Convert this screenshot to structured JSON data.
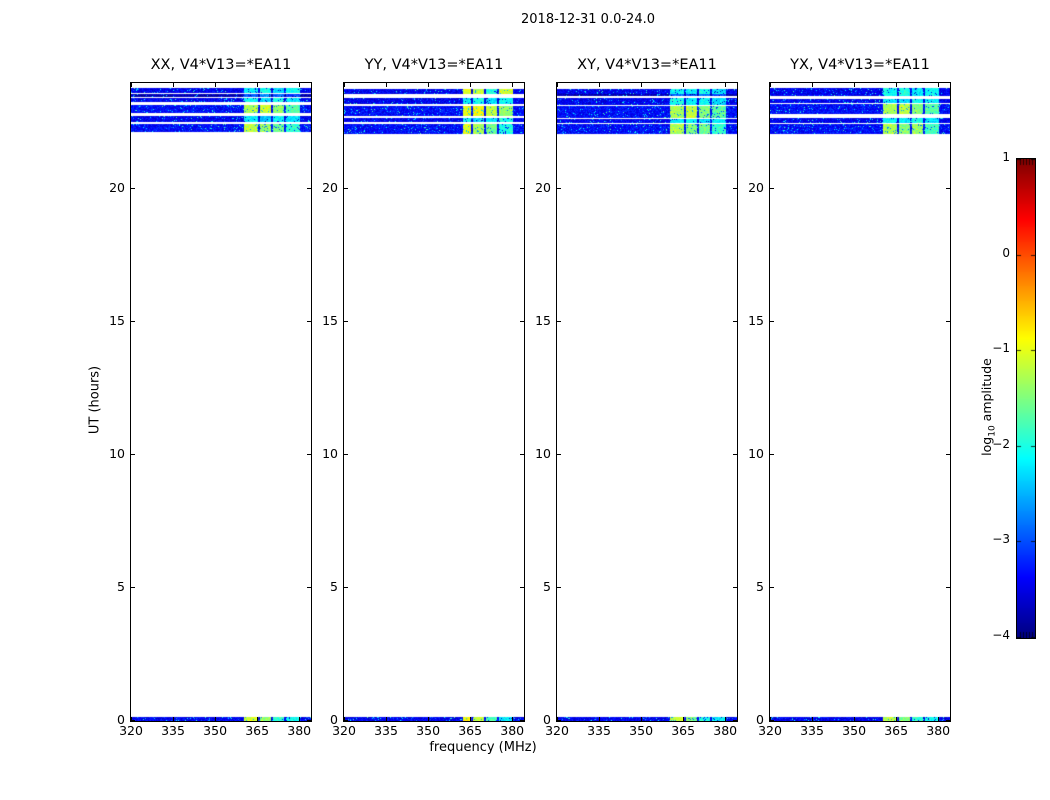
{
  "figure": {
    "suptitle": "2018-12-31 0.0-24.0"
  },
  "chart_data": {
    "type": "heatmap",
    "title": "2018-12-31 0.0-24.0",
    "xlabel": "frequency (MHz)",
    "ylabel": "UT (hours)",
    "x_range": [
      320,
      384.2
    ],
    "y_range": [
      0,
      24
    ],
    "x_ticks": [
      320,
      335,
      350,
      365,
      380
    ],
    "y_ticks": [
      0,
      5,
      10,
      15,
      20
    ],
    "grid": false,
    "colorbar": {
      "label_pre": "log",
      "label_sub": "10",
      "label_post": " amplitude",
      "ticks": [
        1,
        0,
        -1,
        -2,
        -3,
        -4
      ],
      "range": [
        -4,
        1
      ],
      "colormap": "jet"
    },
    "bright_segments_mhz": [
      [
        360.4,
        365.2
      ],
      [
        366.0,
        369.9
      ],
      [
        370.7,
        374.5
      ],
      [
        375.3,
        380.2
      ]
    ],
    "value_note": "bands are speckled noise around 'base' log10 amplitude; 'segs' are the four bright RFI/cal segments 360-380 MHz",
    "panels": [
      {
        "title": "XX, V4*V13=*EA11",
        "bright_start_mhz": 360.4,
        "bands": [
          {
            "ut": [
              23.63,
              23.82
            ],
            "base": -3.6,
            "segs": [
              -2.2,
              -2.0,
              -2.3,
              -2.1
            ]
          },
          {
            "ut": [
              23.48,
              23.58
            ],
            "base": -3.9,
            "segs": [
              -3.0,
              -2.7,
              -2.9,
              -3.1
            ]
          },
          {
            "ut": [
              23.28,
              23.44
            ],
            "base": -3.6,
            "segs": [
              -2.1,
              -2.3,
              -2.0,
              -2.2
            ]
          },
          {
            "ut": [
              22.86,
              23.16
            ],
            "base": -3.5,
            "segs": [
              -1.3,
              -1.1,
              -1.4,
              -1.7
            ]
          },
          {
            "ut": [
              22.55,
              22.76
            ],
            "base": -3.6,
            "segs": [
              -2.2,
              -2.4,
              -2.1,
              -2.3
            ]
          },
          {
            "ut": [
              22.17,
              22.47
            ],
            "base": -3.5,
            "segs": [
              -1.2,
              -1.4,
              -1.6,
              -1.9
            ]
          },
          {
            "ut": [
              0.0,
              0.14
            ],
            "base": -3.6,
            "segs": [
              -1.1,
              -1.4,
              -1.9,
              -2.1
            ]
          }
        ]
      },
      {
        "title": "YY, V4*V13=*EA11",
        "bright_start_mhz": 362.3,
        "bands": [
          {
            "ut": [
              23.58,
              23.77
            ],
            "base": -3.6,
            "segs": [
              -1.0,
              -1.2,
              -2.0,
              -1.1
            ]
          },
          {
            "ut": [
              23.2,
              23.45
            ],
            "base": -3.6,
            "segs": [
              -2.2,
              -2.0,
              -2.3,
              -2.1
            ]
          },
          {
            "ut": [
              22.76,
              23.14
            ],
            "base": -3.5,
            "segs": [
              -1.0,
              -0.9,
              -1.2,
              -1.4
            ]
          },
          {
            "ut": [
              22.55,
              22.7
            ],
            "base": -3.6,
            "segs": [
              -2.1,
              -2.3,
              -2.2,
              -2.0
            ]
          },
          {
            "ut": [
              22.07,
              22.45
            ],
            "base": -3.5,
            "segs": [
              -1.0,
              -1.3,
              -1.6,
              -2.0
            ]
          },
          {
            "ut": [
              0.0,
              0.14
            ],
            "base": -3.6,
            "segs": [
              -0.9,
              -1.2,
              -1.8,
              -2.2
            ]
          }
        ]
      },
      {
        "title": "XY, V4*V13=*EA11",
        "bright_start_mhz": 360.4,
        "bands": [
          {
            "ut": [
              23.59,
              23.77
            ],
            "base": -3.6,
            "segs": [
              -2.1,
              -2.2,
              -2.0,
              -2.3
            ]
          },
          {
            "ut": [
              23.51,
              23.58
            ],
            "base": -3.9,
            "segs": [
              -2.9,
              -3.0,
              -2.8,
              -3.1
            ]
          },
          {
            "ut": [
              23.19,
              23.44
            ],
            "base": -3.6,
            "segs": [
              -2.0,
              -2.2,
              -2.1,
              -2.3
            ]
          },
          {
            "ut": [
              22.7,
              23.14
            ],
            "base": -3.5,
            "segs": [
              -1.3,
              -1.2,
              -1.5,
              -1.7
            ]
          },
          {
            "ut": [
              22.51,
              22.63
            ],
            "base": -3.6,
            "segs": [
              -2.2,
              -2.1,
              -2.3,
              -2.2
            ]
          },
          {
            "ut": [
              22.07,
              22.45
            ],
            "base": -3.5,
            "segs": [
              -1.3,
              -1.5,
              -1.6,
              -1.9
            ]
          },
          {
            "ut": [
              0.0,
              0.14
            ],
            "base": -3.6,
            "segs": [
              -1.2,
              -1.5,
              -2.0,
              -2.2
            ]
          }
        ]
      },
      {
        "title": "YX, V4*V13=*EA11",
        "bright_start_mhz": 359.7,
        "bands": [
          {
            "ut": [
              23.51,
              23.83
            ],
            "base": -3.6,
            "segs": [
              -2.1,
              -2.0,
              -2.2,
              -2.1
            ]
          },
          {
            "ut": [
              23.26,
              23.39
            ],
            "base": -3.6,
            "segs": [
              -2.2,
              -2.3,
              -2.1,
              -2.2
            ]
          },
          {
            "ut": [
              22.83,
              23.2
            ],
            "base": -3.5,
            "segs": [
              -1.3,
              -1.2,
              -1.5,
              -1.7
            ]
          },
          {
            "ut": [
              22.51,
              22.7
            ],
            "base": -3.6,
            "segs": [
              -2.1,
              -2.2,
              -2.0,
              -2.3
            ]
          },
          {
            "ut": [
              22.07,
              22.45
            ],
            "base": -3.5,
            "segs": [
              -1.3,
              -1.5,
              -1.4,
              -1.8
            ]
          },
          {
            "ut": [
              0.0,
              0.14
            ],
            "base": -3.6,
            "segs": [
              -1.2,
              -1.5,
              -1.9,
              -2.1
            ]
          }
        ]
      }
    ],
    "colors": {
      "background": "#ffffff",
      "frame": "#000000",
      "dark_band_low": "#000080",
      "dark_band_high": "#0000d0"
    }
  }
}
